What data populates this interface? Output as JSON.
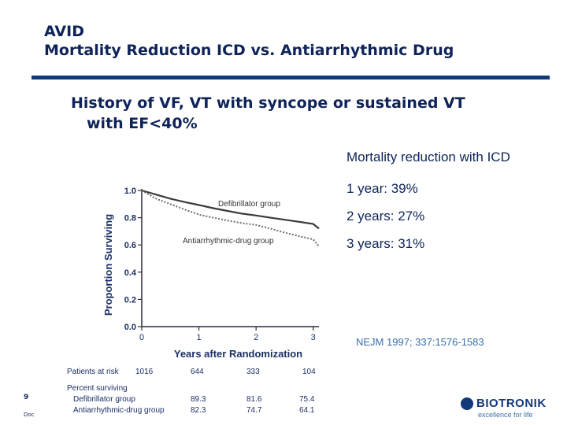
{
  "slide": {
    "title_line1": "AVID",
    "title_line2": "Mortality Reduction ICD vs. Antiarrhythmic Drug",
    "subtitle_line1": "History of VF, VT with syncope or sustained VT",
    "subtitle_line2": "with EF<40%",
    "stats": [
      "Mortality reduction with ICD",
      "1 year: 39%",
      "2 years: 27%",
      "3 years: 31%"
    ],
    "citation": "NEJM 1997; 337:1576-1583",
    "page_number": "9",
    "footer": "Doc",
    "logo_name": "BIOTRONIK",
    "logo_tagline": "excellence for life"
  },
  "colors": {
    "accent": "#123a78",
    "text": "#0e2358",
    "citation": "#3c6fa8"
  },
  "chart_data": {
    "type": "line",
    "xlabel": "Years after Randomization",
    "ylabel": "Proportion Surviving",
    "xlim": [
      0,
      3.1
    ],
    "ylim": [
      0,
      1.0
    ],
    "x_ticks": [
      "0",
      "1",
      "2",
      "3"
    ],
    "y_ticks": [
      "0.0",
      "0.2",
      "0.4",
      "0.6",
      "0.8",
      "1.0"
    ],
    "series": [
      {
        "name": "Defibrillator group",
        "style": "solid",
        "x": [
          0,
          0.25,
          0.5,
          0.75,
          1.0,
          1.25,
          1.5,
          1.75,
          2.0,
          2.25,
          2.5,
          2.75,
          3.0,
          3.1
        ],
        "y": [
          1.0,
          0.97,
          0.94,
          0.915,
          0.893,
          0.87,
          0.85,
          0.83,
          0.816,
          0.8,
          0.785,
          0.77,
          0.754,
          0.72
        ]
      },
      {
        "name": "Antiarrhythmic-drug group",
        "style": "dotted",
        "x": [
          0,
          0.25,
          0.5,
          0.75,
          1.0,
          1.25,
          1.5,
          1.75,
          2.0,
          2.25,
          2.5,
          2.75,
          3.0,
          3.1
        ],
        "y": [
          1.0,
          0.94,
          0.9,
          0.86,
          0.823,
          0.8,
          0.78,
          0.76,
          0.747,
          0.72,
          0.69,
          0.665,
          0.641,
          0.59
        ]
      }
    ],
    "table": {
      "patients_at_risk_label": "Patients at risk",
      "patients_at_risk": [
        "1016",
        "644",
        "333",
        "104"
      ],
      "percent_surviving_label": "Percent surviving",
      "rows": [
        {
          "label": "Defibrillator group",
          "values": [
            "89.3",
            "81.6",
            "75.4"
          ]
        },
        {
          "label": "Antiarrhythmic-drug group",
          "values": [
            "82.3",
            "74.7",
            "64.1"
          ]
        }
      ]
    }
  }
}
